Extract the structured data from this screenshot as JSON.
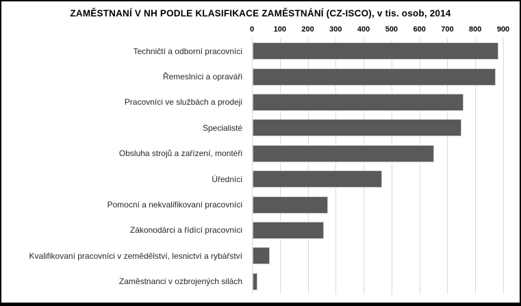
{
  "chart_data": {
    "type": "bar",
    "orientation": "horizontal",
    "title": "ZAMĚSTNANÍ V NH PODLE KLASIFIKACE ZAMĚSTNÁNÍ (CZ-ISCO), v tis. osob, 2014",
    "categories": [
      "Techničtí a odborní pracovníci",
      "Řemeslníci a opraváři",
      "Pracovníci ve službách a prodeji",
      "Specialisté",
      "Obsluha strojů a zařízení, montéři",
      "Úředníci",
      "Pomocní a nekvalifikovaní pracovníci",
      "Zákonodárci a řídící pracovníci",
      "Kvalifikovaní pracovníci v zemědělství, lesnictví a rybářství",
      "Zaměstnanci v ozbrojených silách"
    ],
    "values": [
      880,
      870,
      755,
      748,
      650,
      464,
      270,
      256,
      62,
      17
    ],
    "x_ticks": [
      0,
      100,
      200,
      300,
      400,
      500,
      600,
      700,
      800,
      900
    ],
    "xlim": [
      0,
      900
    ],
    "xlabel": "",
    "ylabel": "",
    "legend": false,
    "grid": true,
    "value_axis_position": "top",
    "bar_color": "#595959",
    "bar_border_color": "#c4c2c1",
    "gridline_color": "#d9d9d9",
    "text_color": "#000000",
    "label_color": "#262626",
    "background_color": "#ffffff",
    "frame_border_color": "#000000"
  }
}
